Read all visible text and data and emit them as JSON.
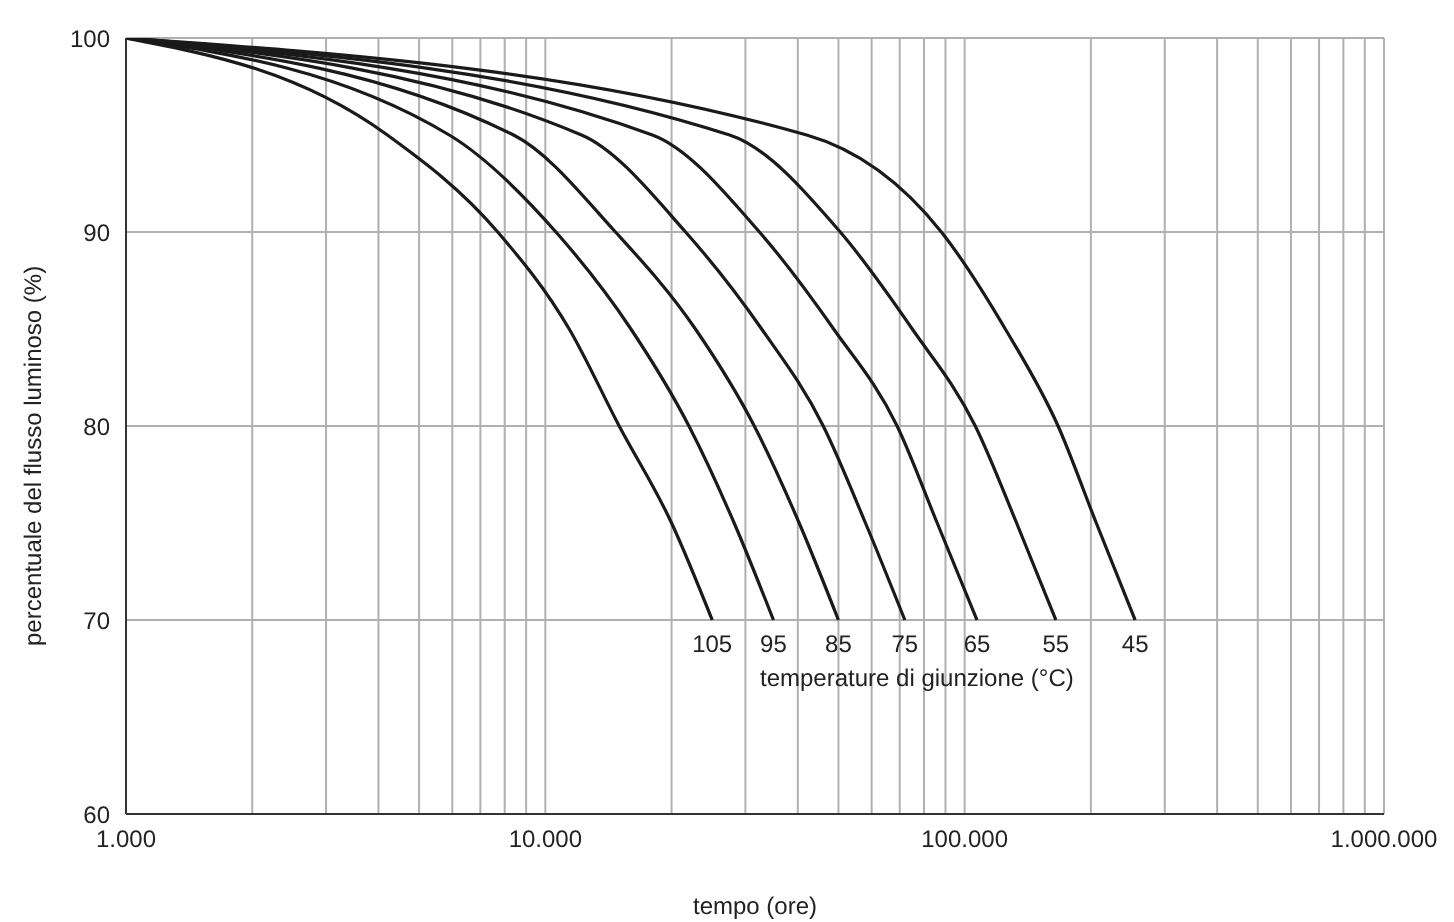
{
  "chart_data": {
    "type": "line",
    "xlabel": "tempo (ore)",
    "ylabel": "percentuale del flusso luminoso (%)",
    "annotations": [
      "temperature di giunzione (°C)"
    ],
    "log": "x",
    "grid": true,
    "marker": "none",
    "line_style": "solid",
    "xlim": [
      1000,
      1000000
    ],
    "ylim": [
      60,
      100
    ],
    "xticks": [
      {
        "value": 1000,
        "label": "1.000"
      },
      {
        "value": 2000,
        "label": null
      },
      {
        "value": 3000,
        "label": null
      },
      {
        "value": 4000,
        "label": null
      },
      {
        "value": 5000,
        "label": null
      },
      {
        "value": 6000,
        "label": null
      },
      {
        "value": 7000,
        "label": null
      },
      {
        "value": 8000,
        "label": null
      },
      {
        "value": 9000,
        "label": null
      },
      {
        "value": 10000,
        "label": "10.000"
      },
      {
        "value": 20000,
        "label": null
      },
      {
        "value": 30000,
        "label": null
      },
      {
        "value": 40000,
        "label": null
      },
      {
        "value": 50000,
        "label": null
      },
      {
        "value": 60000,
        "label": null
      },
      {
        "value": 70000,
        "label": null
      },
      {
        "value": 80000,
        "label": null
      },
      {
        "value": 90000,
        "label": null
      },
      {
        "value": 100000,
        "label": "100.000"
      },
      {
        "value": 200000,
        "label": null
      },
      {
        "value": 300000,
        "label": null
      },
      {
        "value": 400000,
        "label": null
      },
      {
        "value": 500000,
        "label": null
      },
      {
        "value": 600000,
        "label": null
      },
      {
        "value": 700000,
        "label": null
      },
      {
        "value": 800000,
        "label": null
      },
      {
        "value": 900000,
        "label": null
      },
      {
        "value": 1000000,
        "label": "1.000.000"
      }
    ],
    "yticks": [
      60,
      70,
      80,
      90,
      100
    ],
    "series": [
      {
        "name": "105",
        "color": "#1a1a1a",
        "x": [
          1000,
          4200,
          7700,
          11400,
          15000,
          20000,
          25000
        ],
        "values": [
          100,
          95,
          90,
          85,
          80,
          75,
          70
        ]
      },
      {
        "name": "95",
        "color": "#1a1a1a",
        "x": [
          1000,
          5900,
          10600,
          16000,
          22000,
          28200,
          35000
        ],
        "values": [
          100,
          95,
          90,
          85,
          80,
          75,
          70
        ]
      },
      {
        "name": "85",
        "color": "#1a1a1a",
        "x": [
          1000,
          8400,
          14700,
          22800,
          31500,
          40300,
          50000
        ],
        "values": [
          100,
          95,
          90,
          85,
          80,
          75,
          70
        ]
      },
      {
        "name": "75",
        "color": "#1a1a1a",
        "x": [
          1000,
          12200,
          21600,
          32800,
          46000,
          58000,
          72000
        ],
        "values": [
          100,
          95,
          90,
          85,
          80,
          75,
          70
        ]
      },
      {
        "name": "65",
        "color": "#1a1a1a",
        "x": [
          1000,
          18000,
          32400,
          48700,
          69000,
          86000,
          107000
        ],
        "values": [
          100,
          95,
          90,
          85,
          80,
          75,
          70
        ]
      },
      {
        "name": "55",
        "color": "#1a1a1a",
        "x": [
          1000,
          27500,
          50500,
          75000,
          106000,
          133000,
          165000
        ],
        "values": [
          100,
          95,
          90,
          85,
          80,
          75,
          70
        ]
      },
      {
        "name": "45",
        "color": "#1a1a1a",
        "x": [
          1000,
          42000,
          88000,
          125000,
          167000,
          206000,
          255000
        ],
        "values": [
          100,
          95,
          90,
          85,
          80,
          75,
          70
        ]
      }
    ]
  }
}
